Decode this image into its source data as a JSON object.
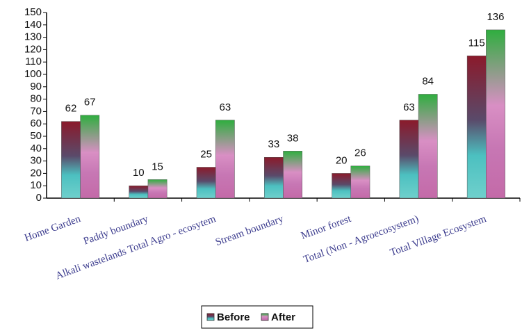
{
  "chart_data": {
    "type": "bar",
    "categories": [
      "Home Garden",
      "Paddy boundary",
      "Alkali wastelands Total Agro - ecosytem",
      "Stream boundary",
      "Minor forest",
      "Total (Non - Agroecosystem)",
      "Total Village Ecosystem"
    ],
    "series": [
      {
        "name": "Before",
        "color": "#8b1a2b",
        "values": [
          62,
          10,
          25,
          33,
          20,
          63,
          115
        ]
      },
      {
        "name": "After",
        "color": "#2fae3f",
        "values": [
          67,
          15,
          63,
          38,
          26,
          84,
          136
        ]
      }
    ],
    "ylim": [
      0,
      150
    ],
    "yticks": [
      0,
      10,
      20,
      30,
      40,
      50,
      60,
      70,
      80,
      90,
      100,
      110,
      120,
      130,
      140,
      150
    ],
    "legend": "bottom"
  }
}
